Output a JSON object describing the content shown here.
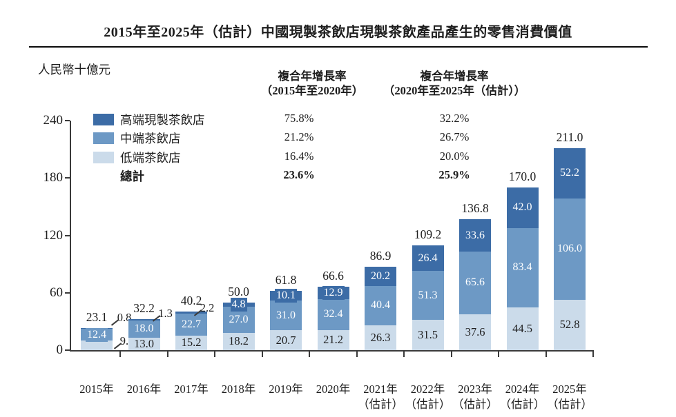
{
  "title": "2015年至2025年（估計）中國現製茶飲店現製茶飲產品產生的零售消費價值",
  "unit_label": "人民幣十億元",
  "legend": {
    "items": [
      {
        "label": "高端現製茶飲店",
        "color": "#3c6ca6"
      },
      {
        "label": "中端茶飲店",
        "color": "#6d99c5"
      },
      {
        "label": "低端茶飲店",
        "color": "#cbdbea"
      },
      {
        "label": "總計"
      }
    ]
  },
  "cagr_columns": [
    {
      "header_line1": "複合年增長率",
      "header_line2": "（2015年至2020年）",
      "values": [
        "75.8%",
        "21.2%",
        "16.4%",
        "23.6%"
      ]
    },
    {
      "header_line1": "複合年增長率",
      "header_line2": "（2020年至2025年（估計））",
      "values": [
        "32.2%",
        "26.7%",
        "20.0%",
        "25.9%"
      ]
    }
  ],
  "chart_data": {
    "type": "bar",
    "stacked": true,
    "title": "2015年至2025年（估計）中國現製茶飲店現製茶飲產品產生的零售消費價值",
    "ylabel": "人民幣十億元",
    "ylim": [
      0,
      240
    ],
    "y_ticks": [
      0,
      60,
      120,
      180,
      240
    ],
    "grid": false,
    "legend_position": "top-left",
    "categories": [
      [
        "2015年"
      ],
      [
        "2016年"
      ],
      [
        "2017年"
      ],
      [
        "2018年"
      ],
      [
        "2019年"
      ],
      [
        "2020年"
      ],
      [
        "2021年",
        "（估計）"
      ],
      [
        "2022年",
        "（估計）"
      ],
      [
        "2023年",
        "（估計）"
      ],
      [
        "2024年",
        "（估計）"
      ],
      [
        "2025年",
        "（估計）"
      ]
    ],
    "series": [
      {
        "name": "高端現製茶飲店",
        "color": "#3c6ca6",
        "values": [
          0.8,
          1.3,
          2.2,
          4.8,
          10.1,
          12.9,
          20.2,
          26.4,
          33.6,
          42.0,
          52.2
        ]
      },
      {
        "name": "中端茶飲店",
        "color": "#6d99c5",
        "values": [
          12.4,
          18.0,
          22.7,
          27.0,
          31.0,
          32.4,
          40.4,
          51.3,
          65.6,
          83.4,
          106.0
        ]
      },
      {
        "name": "低端茶飲店",
        "color": "#cbdbea",
        "values": [
          9.9,
          13.0,
          15.2,
          18.2,
          20.7,
          21.2,
          26.3,
          31.5,
          37.6,
          44.5,
          52.8
        ]
      }
    ],
    "totals": [
      23.1,
      32.2,
      40.2,
      50.0,
      61.8,
      66.6,
      86.9,
      109.2,
      136.8,
      170.0,
      211.0
    ]
  }
}
